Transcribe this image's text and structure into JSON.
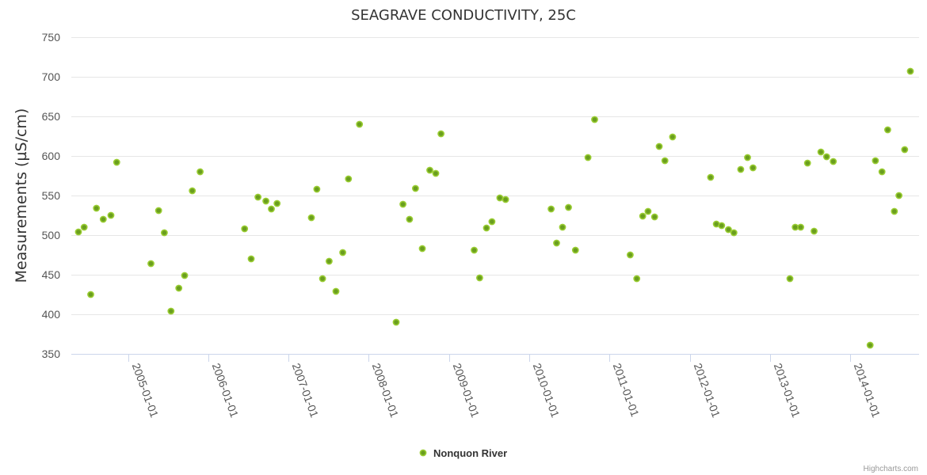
{
  "chart_data": {
    "type": "scatter",
    "title": "SEAGRAVE CONDUCTIVITY, 25C",
    "xlabel": "",
    "ylabel": "Measurements (µS/cm)",
    "ylim": [
      350,
      750
    ],
    "yticks": [
      350,
      400,
      450,
      500,
      550,
      600,
      650,
      700,
      750
    ],
    "xlim": [
      "2004-05-20",
      "2014-10-01"
    ],
    "xticks": [
      "2005-01-01",
      "2006-01-01",
      "2007-01-01",
      "2008-01-01",
      "2009-01-01",
      "2010-01-01",
      "2011-01-01",
      "2012-01-01",
      "2013-01-01",
      "2014-01-01"
    ],
    "grid": true,
    "legend_position": "bottom-center",
    "series": [
      {
        "name": "Nonquon River",
        "color": "#6a9e1f",
        "points": [
          {
            "x": "2004-05-20",
            "y": 504
          },
          {
            "x": "2004-06-15",
            "y": 510
          },
          {
            "x": "2004-07-15",
            "y": 425
          },
          {
            "x": "2004-08-10",
            "y": 534
          },
          {
            "x": "2004-09-10",
            "y": 520
          },
          {
            "x": "2004-10-15",
            "y": 525
          },
          {
            "x": "2004-11-10",
            "y": 592
          },
          {
            "x": "2005-04-15",
            "y": 464
          },
          {
            "x": "2005-05-20",
            "y": 531
          },
          {
            "x": "2005-06-15",
            "y": 503
          },
          {
            "x": "2005-07-15",
            "y": 404
          },
          {
            "x": "2005-08-20",
            "y": 433
          },
          {
            "x": "2005-09-15",
            "y": 449
          },
          {
            "x": "2005-10-20",
            "y": 556
          },
          {
            "x": "2005-11-25",
            "y": 580
          },
          {
            "x": "2006-06-15",
            "y": 508
          },
          {
            "x": "2006-07-15",
            "y": 470
          },
          {
            "x": "2006-08-15",
            "y": 548
          },
          {
            "x": "2006-09-20",
            "y": 543
          },
          {
            "x": "2006-10-15",
            "y": 533
          },
          {
            "x": "2006-11-10",
            "y": 540
          },
          {
            "x": "2007-04-15",
            "y": 522
          },
          {
            "x": "2007-05-10",
            "y": 558
          },
          {
            "x": "2007-06-05",
            "y": 445
          },
          {
            "x": "2007-07-05",
            "y": 467
          },
          {
            "x": "2007-08-05",
            "y": 429
          },
          {
            "x": "2007-09-05",
            "y": 478
          },
          {
            "x": "2007-10-01",
            "y": 571
          },
          {
            "x": "2007-11-20",
            "y": 640
          },
          {
            "x": "2008-05-05",
            "y": 390
          },
          {
            "x": "2008-06-05",
            "y": 539
          },
          {
            "x": "2008-07-05",
            "y": 520
          },
          {
            "x": "2008-08-01",
            "y": 559
          },
          {
            "x": "2008-09-01",
            "y": 483
          },
          {
            "x": "2008-10-05",
            "y": 582
          },
          {
            "x": "2008-11-01",
            "y": 578
          },
          {
            "x": "2008-11-25",
            "y": 628
          },
          {
            "x": "2009-04-25",
            "y": 481
          },
          {
            "x": "2009-05-20",
            "y": 446
          },
          {
            "x": "2009-06-20",
            "y": 509
          },
          {
            "x": "2009-07-15",
            "y": 517
          },
          {
            "x": "2009-08-20",
            "y": 547
          },
          {
            "x": "2009-09-15",
            "y": 545
          },
          {
            "x": "2010-04-10",
            "y": 533
          },
          {
            "x": "2010-05-05",
            "y": 490
          },
          {
            "x": "2010-06-01",
            "y": 510
          },
          {
            "x": "2010-06-28",
            "y": 535
          },
          {
            "x": "2010-07-30",
            "y": 481
          },
          {
            "x": "2010-09-25",
            "y": 598
          },
          {
            "x": "2010-10-25",
            "y": 646
          },
          {
            "x": "2011-04-05",
            "y": 475
          },
          {
            "x": "2011-05-05",
            "y": 445
          },
          {
            "x": "2011-06-01",
            "y": 524
          },
          {
            "x": "2011-06-25",
            "y": 530
          },
          {
            "x": "2011-07-25",
            "y": 523
          },
          {
            "x": "2011-08-15",
            "y": 612
          },
          {
            "x": "2011-09-10",
            "y": 594
          },
          {
            "x": "2011-10-15",
            "y": 624
          },
          {
            "x": "2012-04-05",
            "y": 573
          },
          {
            "x": "2012-05-01",
            "y": 514
          },
          {
            "x": "2012-05-25",
            "y": 512
          },
          {
            "x": "2012-06-25",
            "y": 507
          },
          {
            "x": "2012-07-20",
            "y": 503
          },
          {
            "x": "2012-08-20",
            "y": 583
          },
          {
            "x": "2012-09-20",
            "y": 598
          },
          {
            "x": "2012-10-15",
            "y": 585
          },
          {
            "x": "2013-04-01",
            "y": 445
          },
          {
            "x": "2013-04-25",
            "y": 510
          },
          {
            "x": "2013-05-20",
            "y": 510
          },
          {
            "x": "2013-06-20",
            "y": 591
          },
          {
            "x": "2013-07-20",
            "y": 505
          },
          {
            "x": "2013-08-20",
            "y": 605
          },
          {
            "x": "2013-09-15",
            "y": 599
          },
          {
            "x": "2013-10-15",
            "y": 593
          },
          {
            "x": "2014-04-01",
            "y": 361
          },
          {
            "x": "2014-04-25",
            "y": 594
          },
          {
            "x": "2014-05-25",
            "y": 580
          },
          {
            "x": "2014-06-20",
            "y": 633
          },
          {
            "x": "2014-07-20",
            "y": 530
          },
          {
            "x": "2014-08-10",
            "y": 550
          },
          {
            "x": "2014-09-05",
            "y": 608
          },
          {
            "x": "2014-10-01",
            "y": 707
          }
        ]
      }
    ]
  },
  "credits": "Highcharts.com"
}
